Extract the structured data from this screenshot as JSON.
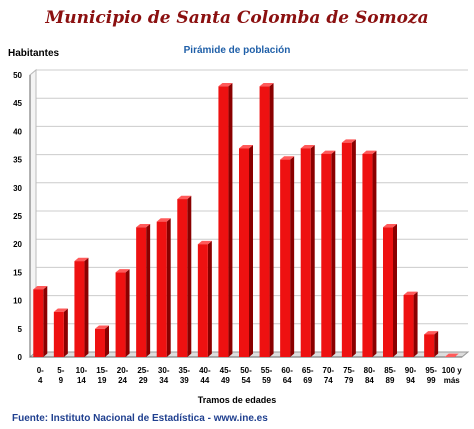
{
  "title": "Municipio de Santa Colomba de Somoza",
  "source": "Fuente: Instituto Nacional de Estadística - www.ine.es",
  "chart_data": {
    "type": "bar",
    "title": "Pirámide de población",
    "xlabel": "Tramos de edades",
    "ylabel": "Habitantes",
    "ylim": [
      0,
      50
    ],
    "yticks": [
      0,
      5,
      10,
      15,
      20,
      25,
      30,
      35,
      40,
      45,
      50
    ],
    "grid": true,
    "categories": [
      "0-4",
      "5-9",
      "10-14",
      "15-19",
      "20-24",
      "25-29",
      "30-34",
      "35-39",
      "40-44",
      "45-49",
      "50-54",
      "55-59",
      "60-64",
      "65-69",
      "70-74",
      "75-79",
      "80-84",
      "85-89",
      "90-94",
      "95-99",
      "100 y más"
    ],
    "values": [
      12,
      8,
      17,
      5,
      15,
      23,
      24,
      28,
      20,
      48,
      37,
      48,
      35,
      37,
      36,
      38,
      36,
      23,
      11,
      4,
      0
    ],
    "colors": {
      "bar": "#ee1111",
      "bar_dark": "#8a0000",
      "grid": "#cccccc",
      "wall": "#bbbbbb",
      "floor": "#999999"
    }
  }
}
